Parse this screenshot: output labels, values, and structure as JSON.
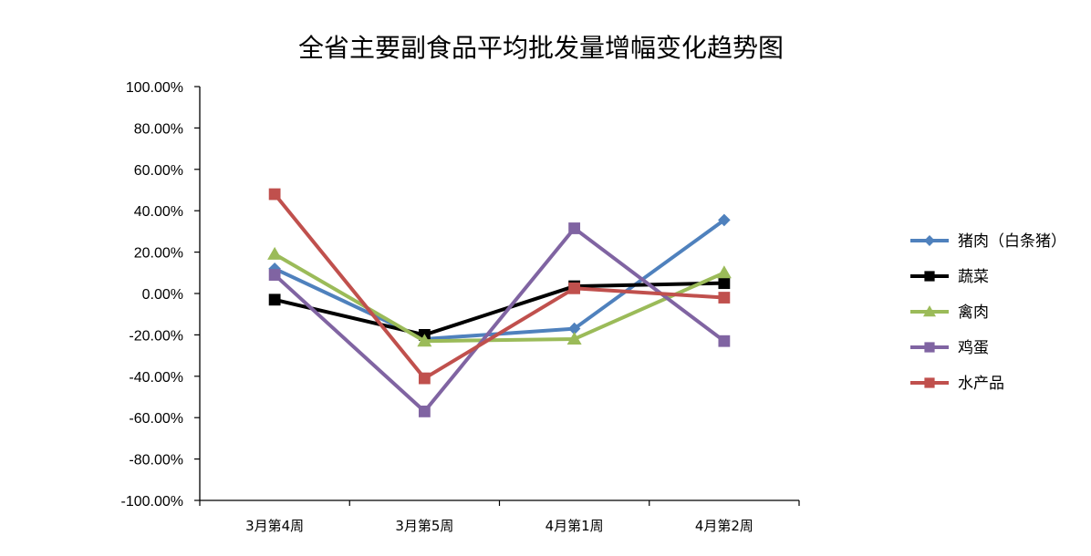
{
  "chart_data": {
    "type": "line",
    "title": "全省主要副食品平均批发量增幅变化趋势图",
    "xlabel": "",
    "ylabel": "",
    "categories": [
      "3月第4周",
      "3月第5周",
      "4月第1周",
      "4月第2周"
    ],
    "ylim": [
      -100,
      100
    ],
    "ytick_step": 20,
    "ytick_labels": [
      "100.00%",
      "80.00%",
      "60.00%",
      "40.00%",
      "20.00%",
      "0.00%",
      "-20.00%",
      "-40.00%",
      "-60.00%",
      "-80.00%",
      "-100.00%"
    ],
    "grid": false,
    "legend_position": "right",
    "series": [
      {
        "name": "猪肉（白条猪）",
        "values": [
          12.0,
          -22.0,
          -17.0,
          35.5
        ],
        "color": "#4F81BD",
        "marker": "diamond"
      },
      {
        "name": "蔬菜",
        "values": [
          -3.0,
          -20.0,
          3.5,
          5.0
        ],
        "color": "#000000",
        "marker": "square"
      },
      {
        "name": "禽肉",
        "values": [
          19.0,
          -23.0,
          -22.0,
          10.0
        ],
        "color": "#9BBB59",
        "marker": "triangle"
      },
      {
        "name": "鸡蛋",
        "values": [
          9.0,
          -57.0,
          31.5,
          -23.0
        ],
        "color": "#8064A2",
        "marker": "square"
      },
      {
        "name": "水产品",
        "values": [
          48.0,
          -41.0,
          2.5,
          -2.0
        ],
        "color": "#C0504D",
        "marker": "square"
      }
    ]
  }
}
